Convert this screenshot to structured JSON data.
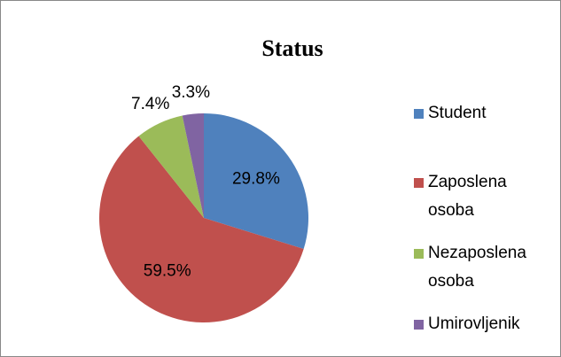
{
  "chart_data": {
    "type": "pie",
    "title": "Status",
    "categories": [
      "Student",
      "Zaposlena osoba",
      "Nezaposlena osoba",
      "Umirovljenik"
    ],
    "values": [
      29.8,
      59.5,
      7.4,
      3.3
    ],
    "value_labels": [
      "29.8%",
      "59.5%",
      "7.4%",
      "3.3%"
    ],
    "colors": [
      "#4f81bd",
      "#c0504d",
      "#9bbb59",
      "#8064a2"
    ],
    "legend": "right"
  }
}
